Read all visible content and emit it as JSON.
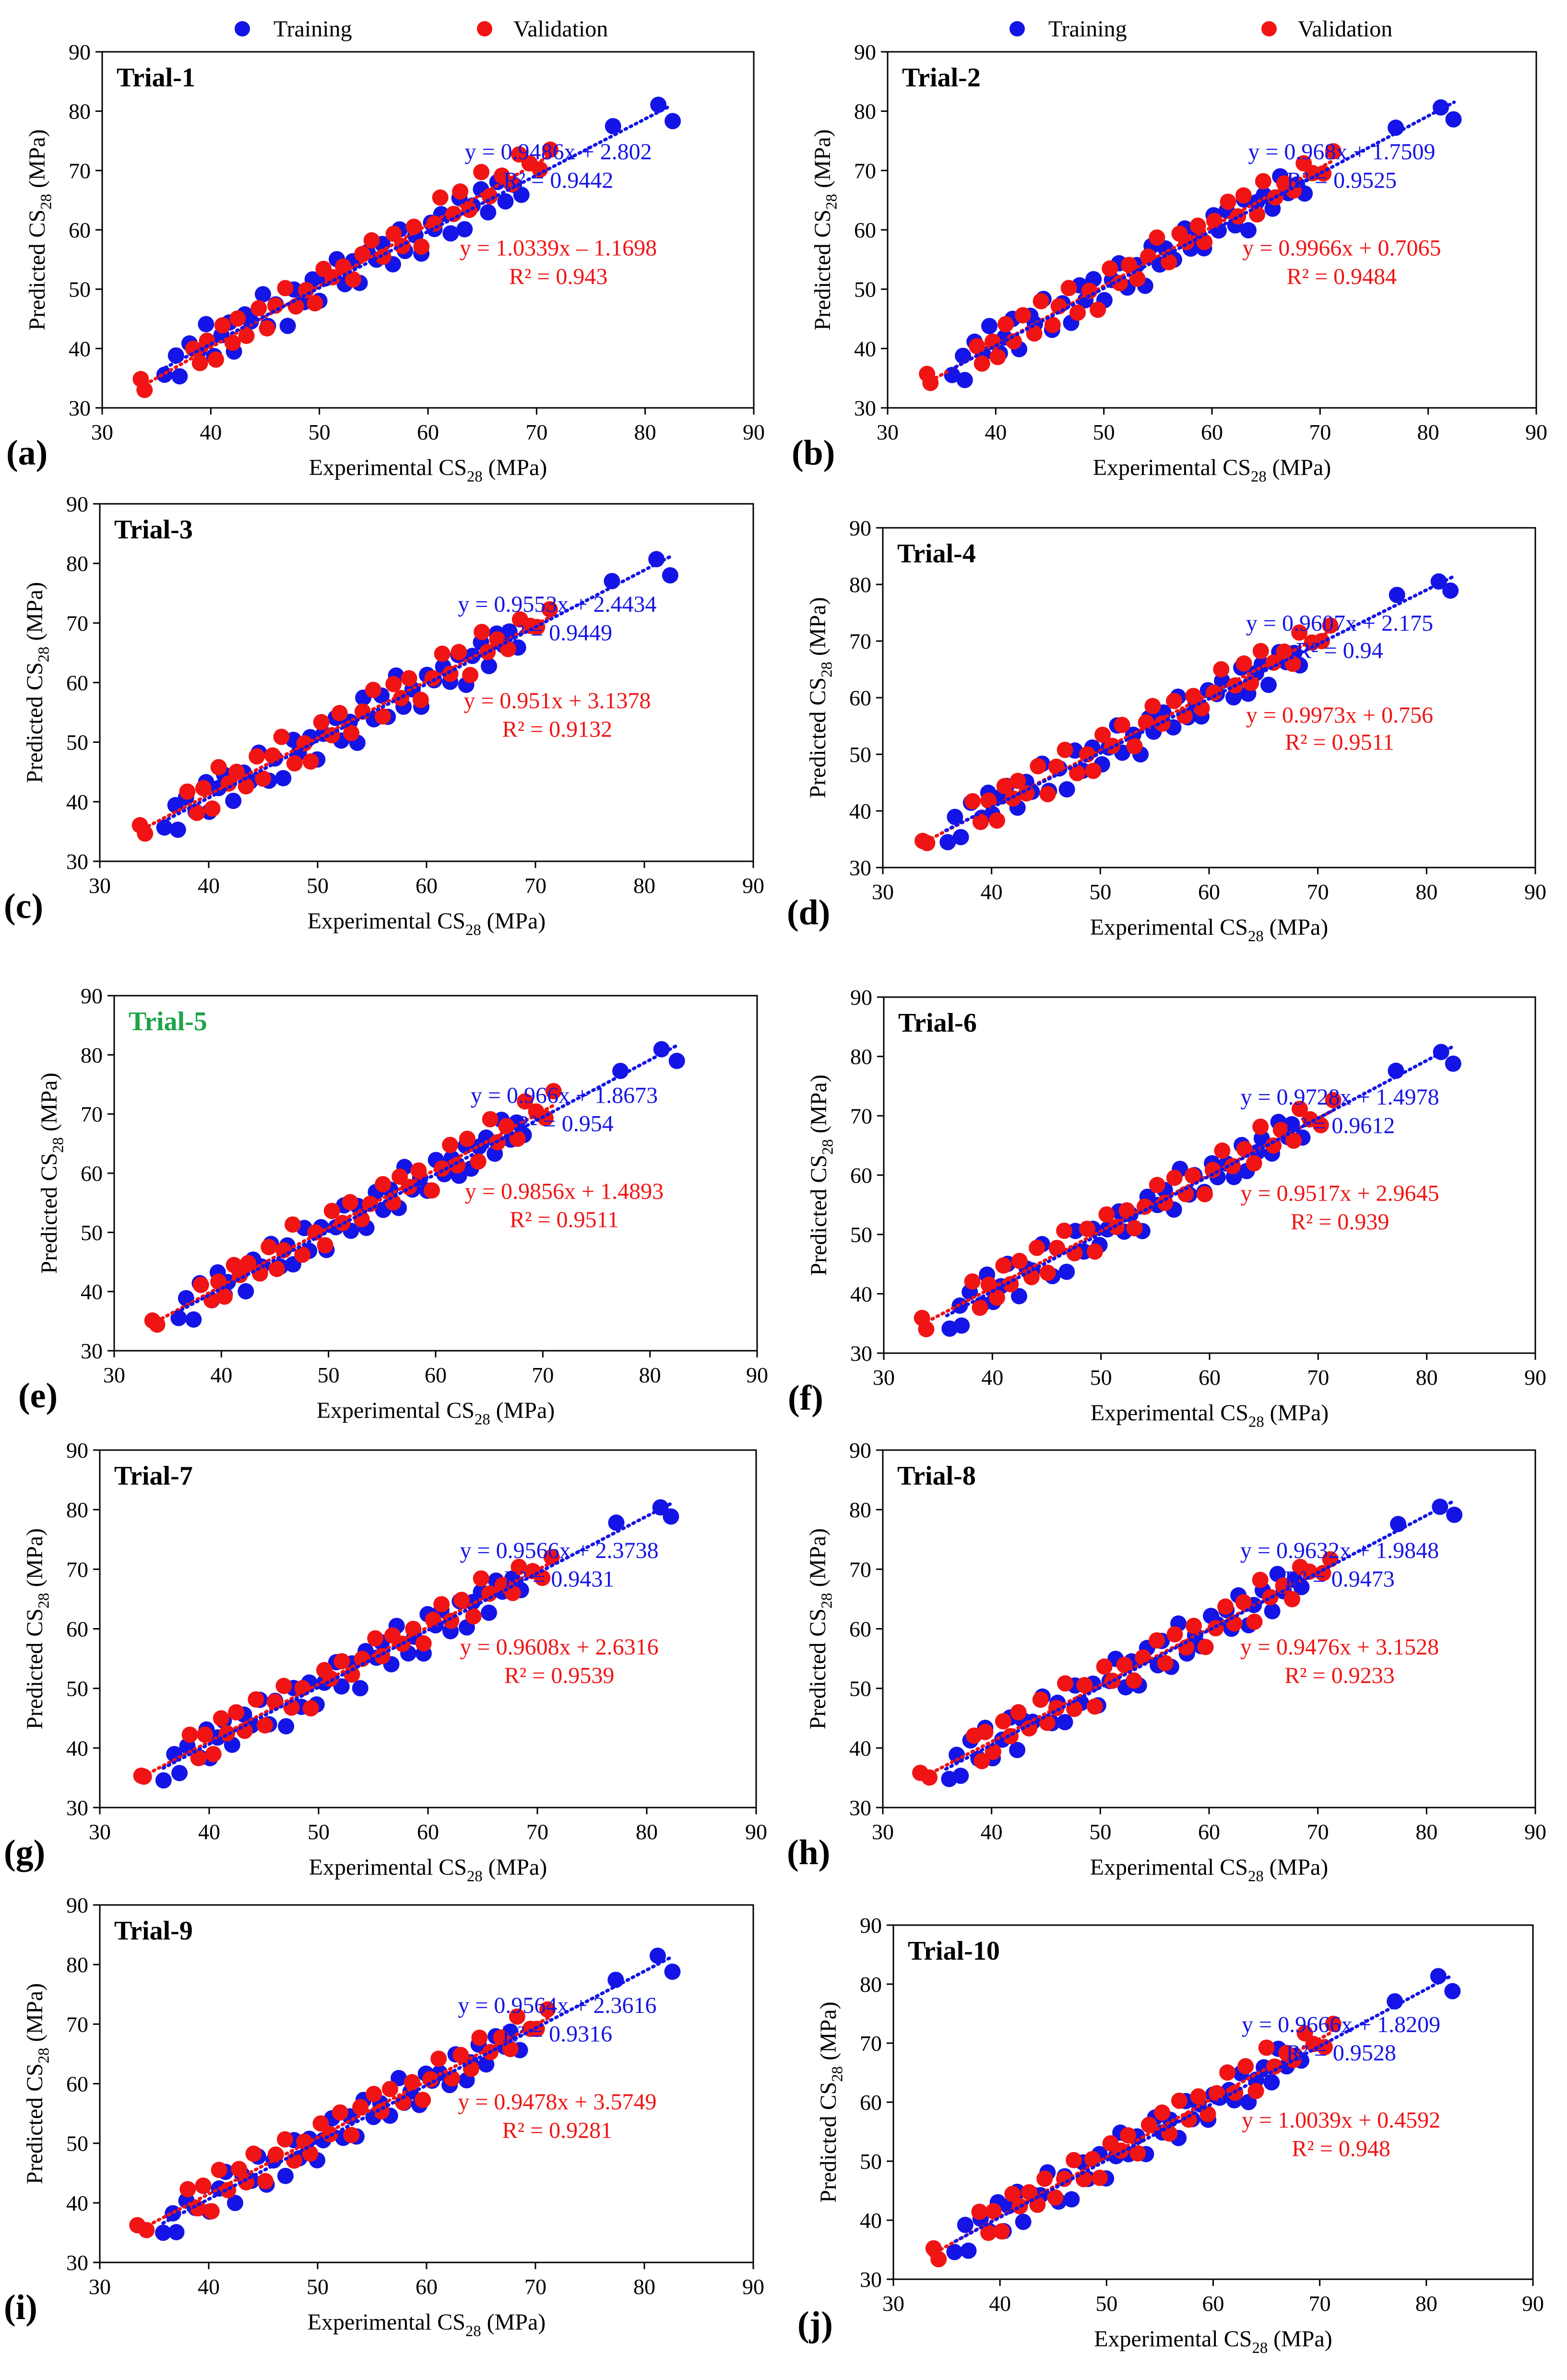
{
  "colors": {
    "training": "#1414e6",
    "validation": "#f01414",
    "trial5_title": "#1fa34a",
    "axis": "#000000"
  },
  "legend": {
    "training_label": "Training",
    "validation_label": "Validation"
  },
  "chart_data": [
    {
      "type": "scatter",
      "panel_label": "(a)",
      "title": "Trial-1",
      "title_color": "#000000",
      "xlabel": "Experimental CS28 (MPa)",
      "ylabel": "Predicted CS28 (MPa)",
      "xlim": [
        30,
        90
      ],
      "ylim": [
        30,
        90
      ],
      "xticks": [
        30,
        40,
        50,
        60,
        70,
        80,
        90
      ],
      "yticks": [
        30,
        40,
        50,
        60,
        70,
        80,
        90
      ],
      "series": [
        {
          "name": "Training",
          "fit": {
            "slope": 0.9486,
            "intercept": 2.802
          },
          "equation": "y = 0.9486x + 2.802",
          "r2_text": "R² = 0.9442"
        },
        {
          "name": "Validation",
          "fit": {
            "slope": 1.0339,
            "intercept": -1.1698
          },
          "equation": "y = 1.0339x – 1.1698",
          "r2_text": "R² = 0.943"
        }
      ]
    },
    {
      "type": "scatter",
      "panel_label": "(b)",
      "title": "Trial-2",
      "title_color": "#000000",
      "xlabel": "Experimental CS28 (MPa)",
      "ylabel": "Predicted CS28 (MPa)",
      "xlim": [
        30,
        90
      ],
      "ylim": [
        30,
        90
      ],
      "xticks": [
        30,
        40,
        50,
        60,
        70,
        80,
        90
      ],
      "yticks": [
        30,
        40,
        50,
        60,
        70,
        80,
        90
      ],
      "series": [
        {
          "name": "Training",
          "fit": {
            "slope": 0.968,
            "intercept": 1.7509
          },
          "equation": "y = 0.968x + 1.7509",
          "r2_text": "R² = 0.9525"
        },
        {
          "name": "Validation",
          "fit": {
            "slope": 0.9966,
            "intercept": 0.7065
          },
          "equation": "y = 0.9966x + 0.7065",
          "r2_text": "R² = 0.9484"
        }
      ]
    },
    {
      "type": "scatter",
      "panel_label": "(c)",
      "title": "Trial-3",
      "title_color": "#000000",
      "xlabel": "Experimental CS28 (MPa)",
      "ylabel": "Predicted CS28 (MPa)",
      "xlim": [
        30,
        90
      ],
      "ylim": [
        30,
        90
      ],
      "xticks": [
        30,
        40,
        50,
        60,
        70,
        80,
        90
      ],
      "yticks": [
        30,
        40,
        50,
        60,
        70,
        80,
        90
      ],
      "series": [
        {
          "name": "Training",
          "fit": {
            "slope": 0.9553,
            "intercept": 2.4434
          },
          "equation": "y = 0.9553x + 2.4434",
          "r2_text": "R² = 0.9449"
        },
        {
          "name": "Validation",
          "fit": {
            "slope": 0.951,
            "intercept": 3.1378
          },
          "equation": "y = 0.951x + 3.1378",
          "r2_text": "R² = 0.9132"
        }
      ]
    },
    {
      "type": "scatter",
      "panel_label": "(d)",
      "title": "Trial-4",
      "title_color": "#000000",
      "xlabel": "Experimental CS28 (MPa)",
      "ylabel": "Predicted CS28 (MPa)",
      "xlim": [
        30,
        90
      ],
      "ylim": [
        30,
        90
      ],
      "xticks": [
        30,
        40,
        50,
        60,
        70,
        80,
        90
      ],
      "yticks": [
        30,
        40,
        50,
        60,
        70,
        80,
        90
      ],
      "series": [
        {
          "name": "Training",
          "fit": {
            "slope": 0.9607,
            "intercept": 2.175
          },
          "equation": "y = 0.9607x + 2.175",
          "r2_text": "R² = 0.94"
        },
        {
          "name": "Validation",
          "fit": {
            "slope": 0.9973,
            "intercept": 0.756
          },
          "equation": "y = 0.9973x + 0.756",
          "r2_text": "R² = 0.9511"
        }
      ]
    },
    {
      "type": "scatter",
      "panel_label": "(e)",
      "title": "Trial-5",
      "title_color": "#1fa34a",
      "xlabel": "Experimental CS28 (MPa)",
      "ylabel": "Predicted CS28 (MPa)",
      "xlim": [
        30,
        90
      ],
      "ylim": [
        30,
        90
      ],
      "xticks": [
        30,
        40,
        50,
        60,
        70,
        80,
        90
      ],
      "yticks": [
        30,
        40,
        50,
        60,
        70,
        80,
        90
      ],
      "series": [
        {
          "name": "Training",
          "fit": {
            "slope": 0.966,
            "intercept": 1.8673
          },
          "equation": "y = 0.966x + 1.8673",
          "r2_text": "R² = 0.954"
        },
        {
          "name": "Validation",
          "fit": {
            "slope": 0.9856,
            "intercept": 1.4893
          },
          "equation": "y = 0.9856x + 1.4893",
          "r2_text": "R² = 0.9511"
        }
      ]
    },
    {
      "type": "scatter",
      "panel_label": "(f)",
      "title": "Trial-6",
      "title_color": "#000000",
      "xlabel": "Experimental CS28 (MPa)",
      "ylabel": "Predicted CS28 (MPa)",
      "xlim": [
        30,
        90
      ],
      "ylim": [
        30,
        90
      ],
      "xticks": [
        30,
        40,
        50,
        60,
        70,
        80,
        90
      ],
      "yticks": [
        30,
        40,
        50,
        60,
        70,
        80,
        90
      ],
      "series": [
        {
          "name": "Training",
          "fit": {
            "slope": 0.9728,
            "intercept": 1.4978
          },
          "equation": "y = 0.9728x + 1.4978",
          "r2_text": "R² = 0.9612"
        },
        {
          "name": "Validation",
          "fit": {
            "slope": 0.9517,
            "intercept": 2.9645
          },
          "equation": "y = 0.9517x + 2.9645",
          "r2_text": "R² = 0.939"
        }
      ]
    },
    {
      "type": "scatter",
      "panel_label": "(g)",
      "title": "Trial-7",
      "title_color": "#000000",
      "xlabel": "Experimental CS28 (MPa)",
      "ylabel": "Predicted CS28 (MPa)",
      "xlim": [
        30,
        90
      ],
      "ylim": [
        30,
        90
      ],
      "xticks": [
        30,
        40,
        50,
        60,
        70,
        80,
        90
      ],
      "yticks": [
        30,
        40,
        50,
        60,
        70,
        80,
        90
      ],
      "series": [
        {
          "name": "Training",
          "fit": {
            "slope": 0.9566,
            "intercept": 2.3738
          },
          "equation": "y = 0.9566x + 2.3738",
          "r2_text": "R² = 0.9431"
        },
        {
          "name": "Validation",
          "fit": {
            "slope": 0.9608,
            "intercept": 2.6316
          },
          "equation": "y = 0.9608x + 2.6316",
          "r2_text": "R² = 0.9539"
        }
      ]
    },
    {
      "type": "scatter",
      "panel_label": "(h)",
      "title": "Trial-8",
      "title_color": "#000000",
      "xlabel": "Experimental CS28 (MPa)",
      "ylabel": "Predicted CS28 (MPa)",
      "xlim": [
        30,
        90
      ],
      "ylim": [
        30,
        90
      ],
      "xticks": [
        30,
        40,
        50,
        60,
        70,
        80,
        90
      ],
      "yticks": [
        30,
        40,
        50,
        60,
        70,
        80,
        90
      ],
      "series": [
        {
          "name": "Training",
          "fit": {
            "slope": 0.9632,
            "intercept": 1.9848
          },
          "equation": "y = 0.9632x + 1.9848",
          "r2_text": "R² = 0.9473"
        },
        {
          "name": "Validation",
          "fit": {
            "slope": 0.9476,
            "intercept": 3.1528
          },
          "equation": "y = 0.9476x + 3.1528",
          "r2_text": "R² = 0.9233"
        }
      ]
    },
    {
      "type": "scatter",
      "panel_label": "(i)",
      "title": "Trial-9",
      "title_color": "#000000",
      "xlabel": "Experimental CS28 (MPa)",
      "ylabel": "Predicted CS28 (MPa)",
      "xlim": [
        30,
        90
      ],
      "ylim": [
        30,
        90
      ],
      "xticks": [
        30,
        40,
        50,
        60,
        70,
        80,
        90
      ],
      "yticks": [
        30,
        40,
        50,
        60,
        70,
        80,
        90
      ],
      "series": [
        {
          "name": "Training",
          "fit": {
            "slope": 0.9564,
            "intercept": 2.3616
          },
          "equation": "y = 0.9564x + 2.3616",
          "r2_text": "R² = 0.9316"
        },
        {
          "name": "Validation",
          "fit": {
            "slope": 0.9478,
            "intercept": 3.5749
          },
          "equation": "y = 0.9478x + 3.5749",
          "r2_text": "R² = 0.9281"
        }
      ]
    },
    {
      "type": "scatter",
      "panel_label": "(j)",
      "title": "Trial-10",
      "title_color": "#000000",
      "xlabel": "Experimental CS28 (MPa)",
      "ylabel": "Predicted CS28 (MPa)",
      "xlim": [
        30,
        90
      ],
      "ylim": [
        30,
        90
      ],
      "xticks": [
        30,
        40,
        50,
        60,
        70,
        80,
        90
      ],
      "yticks": [
        30,
        40,
        50,
        60,
        70,
        80,
        90
      ],
      "series": [
        {
          "name": "Training",
          "fit": {
            "slope": 0.9666,
            "intercept": 1.8209
          },
          "equation": "y = 0.9666x + 1.8209",
          "r2_text": "R² = 0.9528"
        },
        {
          "name": "Validation",
          "fit": {
            "slope": 1.0039,
            "intercept": 0.4592
          },
          "equation": "y = 1.0039x + 0.4592",
          "r2_text": "R² = 0.948"
        }
      ]
    }
  ],
  "points": {
    "training_x": [
      35.9,
      36.8,
      37.2,
      38.1,
      39.0,
      39.6,
      40.2,
      40.8,
      41.5,
      42.3,
      43.1,
      43.8,
      44.6,
      45.4,
      46.1,
      46.9,
      47.7,
      48.4,
      49.2,
      50.0,
      50.7,
      51.5,
      52.2,
      52.9,
      53.7,
      54.4,
      55.1,
      55.8,
      56.6,
      57.3,
      58.0,
      58.7,
      59.4,
      60.1,
      60.7,
      61.4,
      62.1,
      62.8,
      63.5,
      64.2,
      64.9,
      65.6,
      66.3,
      67.0,
      67.7,
      68.4,
      77.2,
      81.2,
      82.4
    ],
    "validation_x": [
      33.6,
      34.1,
      38.2,
      38.9,
      39.6,
      40.3,
      41.0,
      41.8,
      42.6,
      43.4,
      44.3,
      45.1,
      46.0,
      46.8,
      47.7,
      48.6,
      49.5,
      50.4,
      51.3,
      52.2,
      53.1,
      54.0,
      55.0,
      55.9,
      56.8,
      57.7,
      58.6,
      59.5,
      60.4,
      61.3,
      62.2,
      63.1,
      64.0,
      64.9,
      65.8,
      66.7,
      67.6,
      68.5,
      69.4,
      70.3,
      71.2
    ],
    "training_noise": [
      -1.6,
      1.2,
      -2.4,
      2.1,
      -0.8,
      3.1,
      -1.9,
      0.6,
      2.7,
      -2.8,
      1.5,
      -0.4,
      3.4,
      -2.1,
      0.9,
      -3.0,
      2.2,
      -1.1,
      1.8,
      -2.5,
      0.3,
      2.9,
      -1.7,
      1.1,
      -3.2,
      2.4,
      -0.6,
      1.6,
      -2.2,
      3.3,
      -1.3,
      0.7,
      -2.7,
      2.0,
      -0.2,
      1.4,
      -1.8,
      2.6,
      -3.1,
      0.5,
      1.9,
      -2.3,
      2.8,
      -0.9,
      1.0,
      -1.5,
      1.2,
      0.8,
      -2.6
    ],
    "validation_noise": [
      0.9,
      -0.7,
      2.3,
      -1.8,
      1.4,
      -2.6,
      3.0,
      -0.5,
      2.0,
      -1.2,
      2.7,
      -2.2,
      0.6,
      3.2,
      -1.6,
      1.1,
      -2.9,
      2.4,
      -0.3,
      1.7,
      -2.0,
      0.8,
      3.1,
      -1.4,
      2.2,
      -0.9,
      1.5,
      -2.5,
      0.4,
      2.9,
      -1.1,
      1.9,
      -2.3,
      3.3,
      -0.6,
      1.3,
      -1.7,
      2.5,
      0.2,
      -1.0,
      1.6
    ]
  }
}
